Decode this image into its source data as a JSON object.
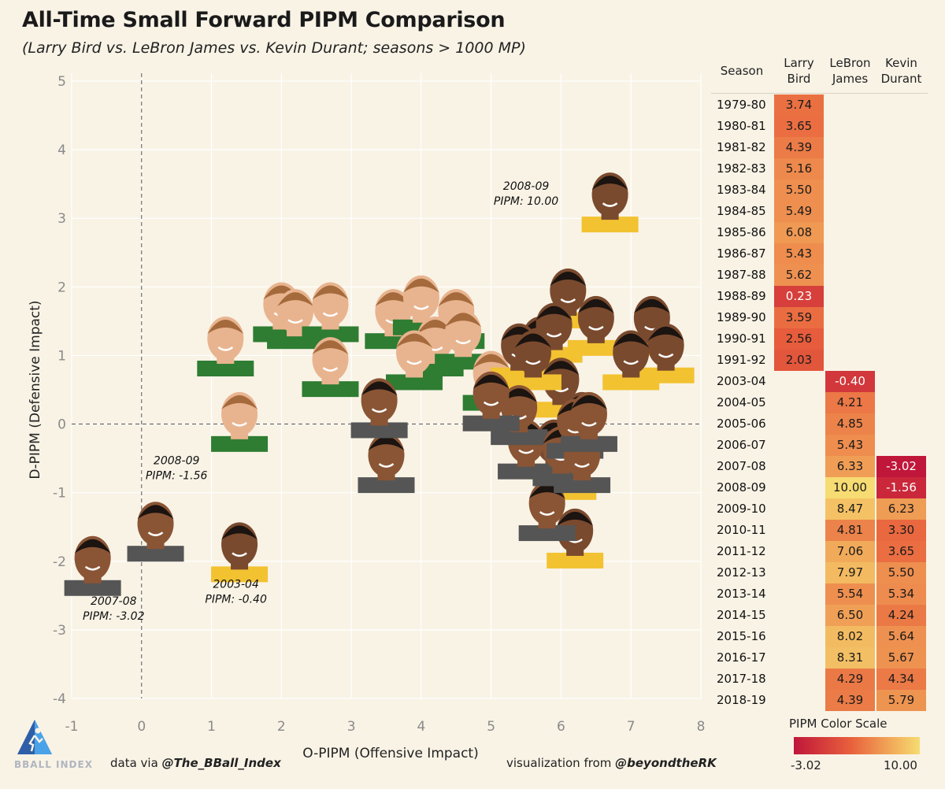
{
  "title": "All-Time Small Forward PIPM Comparison",
  "subtitle": "(Larry Bird vs. LeBron James vs. Kevin Durant; seasons > 1000 MP)",
  "chart_data": {
    "type": "scatter",
    "xlabel": "O-PIPM (Offensive Impact)",
    "ylabel": "D-PIPM (Defensive Impact)",
    "xlim": [
      -1,
      8
    ],
    "ylim": [
      -4,
      5
    ],
    "x_ticks": [
      "-1",
      "0",
      "1",
      "2",
      "3",
      "4",
      "5",
      "6",
      "7",
      "8"
    ],
    "y_ticks": [
      "5",
      "4",
      "3",
      "2",
      "1",
      "0",
      "-1",
      "-2",
      "-3",
      "-4"
    ],
    "grid": true,
    "reference_lines": {
      "x": 0,
      "y": 0,
      "style": "dashed"
    },
    "marker_style": "player headshots",
    "series": [
      {
        "name": "Larry Bird",
        "color": "#2e7d32",
        "points": [
          {
            "x": 1.2,
            "y": 1.2
          },
          {
            "x": 2.0,
            "y": 1.7
          },
          {
            "x": 2.2,
            "y": 1.6
          },
          {
            "x": 2.7,
            "y": 1.7
          },
          {
            "x": 3.6,
            "y": 1.6
          },
          {
            "x": 4.0,
            "y": 1.8
          },
          {
            "x": 4.5,
            "y": 1.6
          },
          {
            "x": 2.7,
            "y": 0.9
          },
          {
            "x": 4.2,
            "y": 1.2
          },
          {
            "x": 4.6,
            "y": 1.3
          },
          {
            "x": 5.0,
            "y": 0.7
          },
          {
            "x": 1.4,
            "y": 0.1
          },
          {
            "x": 3.9,
            "y": 1.0
          }
        ]
      },
      {
        "name": "LeBron James",
        "color": "#f2c231",
        "points": [
          {
            "x": 1.4,
            "y": -1.8,
            "season": "2003-04"
          },
          {
            "x": 5.7,
            "y": 1.2
          },
          {
            "x": 6.1,
            "y": 1.9
          },
          {
            "x": 6.7,
            "y": 3.3,
            "season": "2008-09"
          },
          {
            "x": 5.4,
            "y": 1.1
          },
          {
            "x": 6.5,
            "y": 1.5
          },
          {
            "x": 7.3,
            "y": 1.5
          },
          {
            "x": 7.5,
            "y": 1.1
          },
          {
            "x": 5.9,
            "y": 1.4
          },
          {
            "x": 7.0,
            "y": 1.0
          },
          {
            "x": 6.0,
            "y": 0.6
          },
          {
            "x": 6.1,
            "y": -0.6
          },
          {
            "x": 6.2,
            "y": -1.6
          },
          {
            "x": 6.3,
            "y": 0.1
          },
          {
            "x": 5.6,
            "y": 1.0
          },
          {
            "x": 5.9,
            "y": -0.3
          }
        ]
      },
      {
        "name": "Kevin Durant",
        "color": "#555555",
        "points": [
          {
            "x": -0.7,
            "y": -2.0,
            "season": "2007-08"
          },
          {
            "x": 0.2,
            "y": -1.5,
            "season": "2008-09"
          },
          {
            "x": 3.5,
            "y": -0.5
          },
          {
            "x": 3.4,
            "y": 0.3
          },
          {
            "x": 5.5,
            "y": -0.3
          },
          {
            "x": 5.4,
            "y": 0.2
          },
          {
            "x": 5.8,
            "y": -1.2
          },
          {
            "x": 6.0,
            "y": -0.4
          },
          {
            "x": 6.2,
            "y": 0.0
          },
          {
            "x": 5.0,
            "y": 0.4
          },
          {
            "x": 6.3,
            "y": -0.5
          },
          {
            "x": 6.4,
            "y": 0.1
          }
        ]
      }
    ],
    "annotations": [
      {
        "line1": "2008-09",
        "line2": "PIPM: 10.00",
        "x": 5.5,
        "y": 3.3
      },
      {
        "line1": "2008-09",
        "line2": "PIPM: -1.56",
        "x": 0.5,
        "y": -0.7
      },
      {
        "line1": "2003-04",
        "line2": "PIPM: -0.40",
        "x": 1.35,
        "y": -2.5
      },
      {
        "line1": "2007-08",
        "line2": "PIPM: -3.02",
        "x": -0.4,
        "y": -2.75
      }
    ]
  },
  "table": {
    "headers": {
      "season": "Season",
      "bird": [
        "Larry",
        "Bird"
      ],
      "lebron": [
        "LeBron",
        "James"
      ],
      "durant": [
        "Kevin",
        "Durant"
      ]
    },
    "rows": [
      {
        "season": "1979-80",
        "bird": "3.74",
        "lebron": "",
        "durant": ""
      },
      {
        "season": "1980-81",
        "bird": "3.65",
        "lebron": "",
        "durant": ""
      },
      {
        "season": "1981-82",
        "bird": "4.39",
        "lebron": "",
        "durant": ""
      },
      {
        "season": "1982-83",
        "bird": "5.16",
        "lebron": "",
        "durant": ""
      },
      {
        "season": "1983-84",
        "bird": "5.50",
        "lebron": "",
        "durant": ""
      },
      {
        "season": "1984-85",
        "bird": "5.49",
        "lebron": "",
        "durant": ""
      },
      {
        "season": "1985-86",
        "bird": "6.08",
        "lebron": "",
        "durant": ""
      },
      {
        "season": "1986-87",
        "bird": "5.43",
        "lebron": "",
        "durant": ""
      },
      {
        "season": "1987-88",
        "bird": "5.62",
        "lebron": "",
        "durant": ""
      },
      {
        "season": "1988-89",
        "bird": "0.23",
        "lebron": "",
        "durant": ""
      },
      {
        "season": "1989-90",
        "bird": "3.59",
        "lebron": "",
        "durant": ""
      },
      {
        "season": "1990-91",
        "bird": "2.56",
        "lebron": "",
        "durant": ""
      },
      {
        "season": "1991-92",
        "bird": "2.03",
        "lebron": "",
        "durant": ""
      },
      {
        "season": "2003-04",
        "bird": "",
        "lebron": "-0.40",
        "durant": ""
      },
      {
        "season": "2004-05",
        "bird": "",
        "lebron": "4.21",
        "durant": ""
      },
      {
        "season": "2005-06",
        "bird": "",
        "lebron": "4.85",
        "durant": ""
      },
      {
        "season": "2006-07",
        "bird": "",
        "lebron": "5.43",
        "durant": ""
      },
      {
        "season": "2007-08",
        "bird": "",
        "lebron": "6.33",
        "durant": "-3.02"
      },
      {
        "season": "2008-09",
        "bird": "",
        "lebron": "10.00",
        "durant": "-1.56"
      },
      {
        "season": "2009-10",
        "bird": "",
        "lebron": "8.47",
        "durant": "6.23"
      },
      {
        "season": "2010-11",
        "bird": "",
        "lebron": "4.81",
        "durant": "3.30"
      },
      {
        "season": "2011-12",
        "bird": "",
        "lebron": "7.06",
        "durant": "3.65"
      },
      {
        "season": "2012-13",
        "bird": "",
        "lebron": "7.97",
        "durant": "5.50"
      },
      {
        "season": "2013-14",
        "bird": "",
        "lebron": "5.54",
        "durant": "5.34"
      },
      {
        "season": "2014-15",
        "bird": "",
        "lebron": "6.50",
        "durant": "4.24"
      },
      {
        "season": "2015-16",
        "bird": "",
        "lebron": "8.02",
        "durant": "5.64"
      },
      {
        "season": "2016-17",
        "bird": "",
        "lebron": "8.31",
        "durant": "5.67"
      },
      {
        "season": "2017-18",
        "bird": "",
        "lebron": "4.29",
        "durant": "4.34"
      },
      {
        "season": "2018-19",
        "bird": "",
        "lebron": "4.39",
        "durant": "5.79"
      }
    ]
  },
  "color_scale": {
    "title": "PIPM Color Scale",
    "min_label": "-3.02",
    "max_label": "10.00",
    "min": -3.02,
    "max": 10.0,
    "colors": [
      "#c0163a",
      "#e8603c",
      "#f2b05c",
      "#f6dc72"
    ]
  },
  "footer": {
    "logo_text": "BBALL INDEX",
    "data_prefix": "data via ",
    "data_handle": "@The_BBall_Index",
    "viz_prefix": "visualization from ",
    "viz_handle": "@beyondtheRK"
  }
}
